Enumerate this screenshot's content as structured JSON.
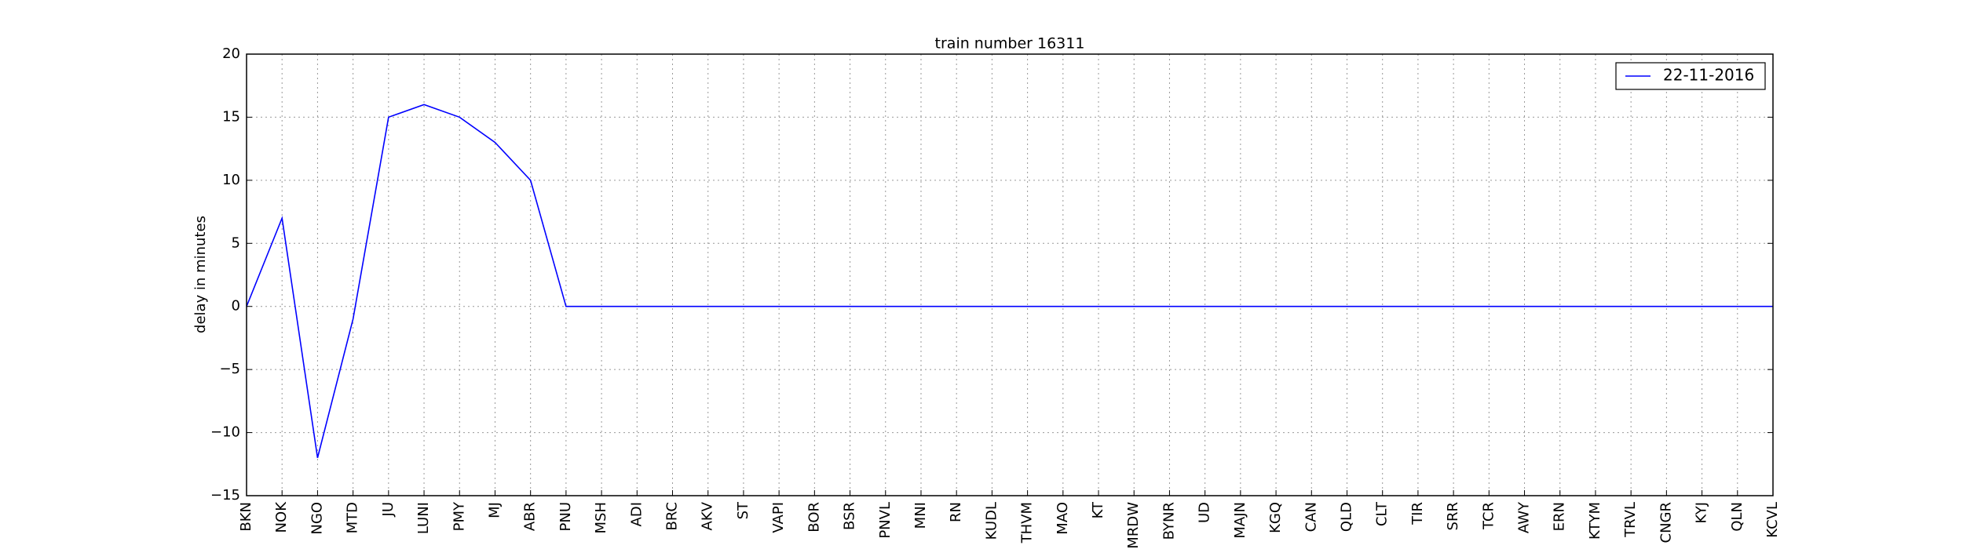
{
  "chart_data": {
    "type": "line",
    "title": "train number 16311",
    "y_label": "delay in minutes",
    "categories": [
      "BKN",
      "NOK",
      "NGO",
      "MTD",
      "JU",
      "LUNI",
      "PMY",
      "MJ",
      "ABR",
      "PNU",
      "MSH",
      "ADI",
      "BRC",
      "AKV",
      "ST",
      "VAPI",
      "BOR",
      "BSR",
      "PNVL",
      "MNI",
      "RN",
      "KUDL",
      "THVM",
      "MAO",
      "KT",
      "MRDW",
      "BYNR",
      "UD",
      "MAJN",
      "KGQ",
      "CAN",
      "QLD",
      "CLT",
      "TIR",
      "SRR",
      "TCR",
      "AWY",
      "ERN",
      "KTYM",
      "TRVL",
      "CNGR",
      "KYJ",
      "QLN",
      "KCVL"
    ],
    "series": [
      {
        "name": "22-11-2016",
        "color": "#0000ff",
        "values": [
          0,
          7,
          -12,
          -1,
          15,
          16,
          15,
          13,
          10,
          0,
          0,
          0,
          0,
          0,
          0,
          0,
          0,
          0,
          0,
          0,
          0,
          0,
          0,
          0,
          0,
          0,
          0,
          0,
          0,
          0,
          0,
          0,
          0,
          0,
          0,
          0,
          0,
          0,
          0,
          0,
          0,
          0,
          0,
          0
        ]
      }
    ],
    "ylim": [
      -15,
      20
    ],
    "yticks": [
      {
        "value": -15,
        "label": "−15"
      },
      {
        "value": -10,
        "label": "−10"
      },
      {
        "value": -5,
        "label": "−5"
      },
      0,
      5,
      10,
      15,
      20
    ],
    "grid": true,
    "legend": "upper right"
  }
}
